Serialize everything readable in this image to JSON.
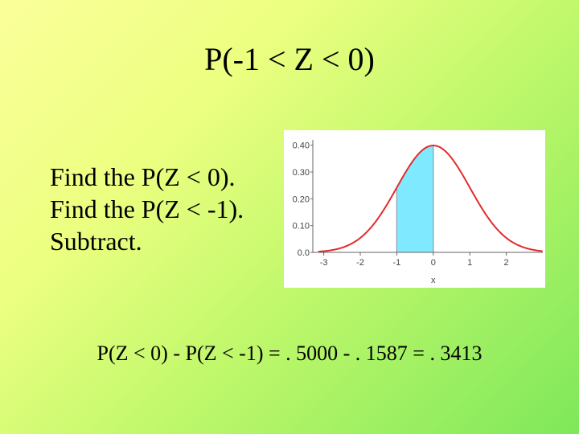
{
  "slide": {
    "title": "P(-1 < Z < 0)",
    "bullets": [
      "Find the P(Z < 0).",
      "Find the P(Z < -1).",
      "Subtract."
    ],
    "result": "P(Z < 0) - P(Z < -1) = . 5000 - . 1587 = . 3413"
  },
  "chart_data": {
    "type": "area",
    "xlabel": "x",
    "xticks": [
      -3,
      -2,
      -1,
      0,
      1,
      2
    ],
    "yticks": [
      "0.0",
      "0.10",
      "0.20",
      "0.30",
      "0.40"
    ],
    "xlim": [
      -3.3,
      3
    ],
    "ylim": [
      0,
      0.42
    ],
    "curve": "standard normal density",
    "shaded_range": [
      -1,
      0
    ],
    "curve_color": "#e32b2b",
    "fill_color": "#7feaff"
  }
}
